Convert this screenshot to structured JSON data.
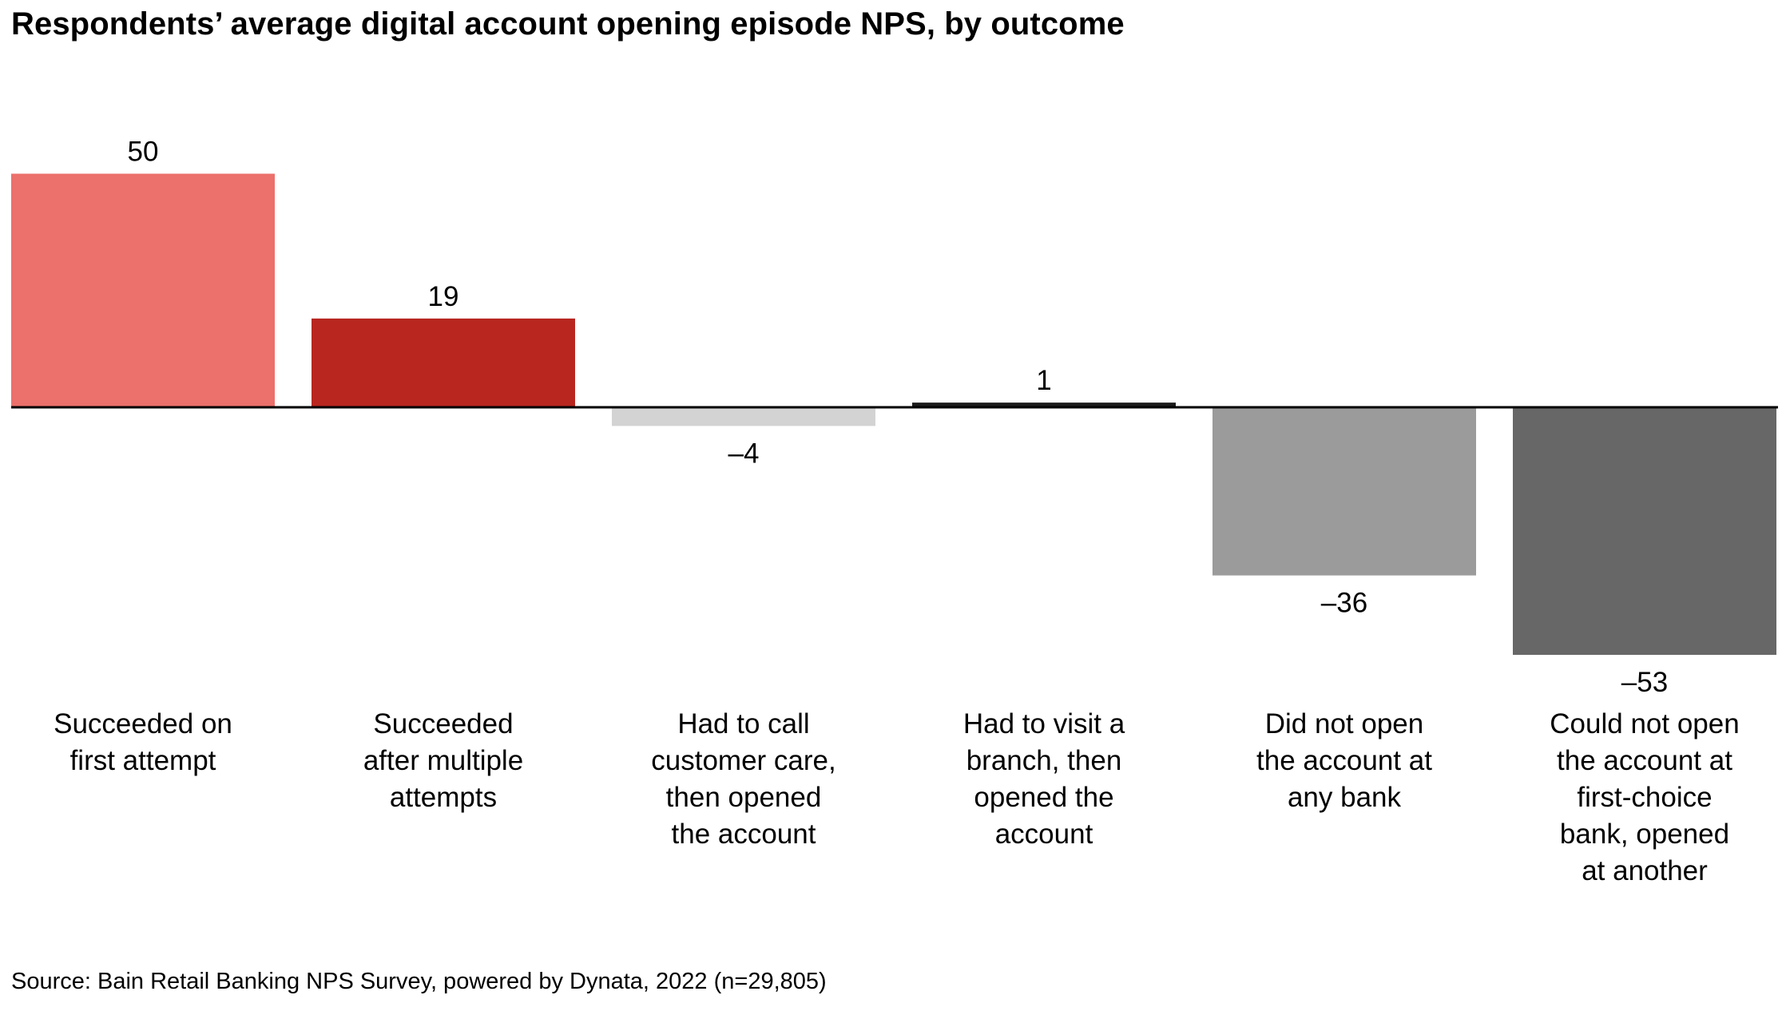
{
  "chart_data": {
    "type": "bar",
    "title": "Respondents’ average digital account opening episode NPS, by outcome",
    "categories": [
      [
        "Succeeded on",
        "first attempt"
      ],
      [
        "Succeeded",
        "after multiple",
        "attempts"
      ],
      [
        "Had to call",
        "customer care,",
        "then opened",
        "the account"
      ],
      [
        "Had to visit a",
        "branch, then",
        "opened the",
        "account"
      ],
      [
        "Did not open",
        "the account at",
        "any bank"
      ],
      [
        "Could not open",
        "the account at",
        "first-choice",
        "bank, opened",
        "at another"
      ]
    ],
    "values": [
      50,
      19,
      -4,
      1,
      -36,
      -53
    ],
    "value_labels": [
      "50",
      "19",
      "–4",
      "1",
      "–36",
      "–53"
    ],
    "colors": [
      "#ec706b",
      "#b8261f",
      "#d3d3d3",
      "#1a1a1a",
      "#9b9b9b",
      "#676767"
    ],
    "xlabel": "",
    "ylabel": "",
    "ylim": [
      -53,
      50
    ],
    "source": "Source: Bain Retail Banking NPS Survey, powered by Dynata, 2022 (n=29,805)"
  }
}
